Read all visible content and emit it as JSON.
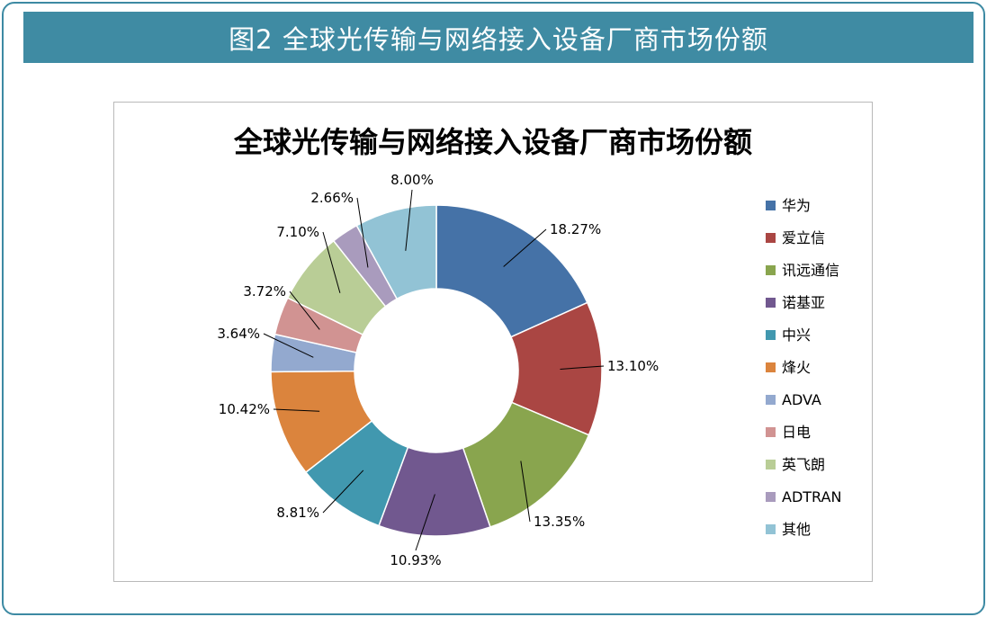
{
  "header": {
    "title": "图2  全球光传输与网络接入设备厂商市场份额"
  },
  "chart_data": {
    "type": "pie",
    "title": "全球光传输与网络接入设备厂商市场份额",
    "legend_position": "right",
    "series": [
      {
        "name": "华为",
        "value": 18.27,
        "label": "18.27%",
        "color": "#4572a7"
      },
      {
        "name": "爱立信",
        "value": 13.1,
        "label": "13.10%",
        "color": "#aa4643"
      },
      {
        "name": "讯远通信",
        "value": 13.35,
        "label": "13.35%",
        "color": "#89a54e"
      },
      {
        "name": "诺基亚",
        "value": 10.93,
        "label": "10.93%",
        "color": "#71588f"
      },
      {
        "name": "中兴",
        "value": 8.81,
        "label": "8.81%",
        "color": "#4198af"
      },
      {
        "name": "烽火",
        "value": 10.42,
        "label": "10.42%",
        "color": "#db843d"
      },
      {
        "name": "ADVA",
        "value": 3.64,
        "label": "3.64%",
        "color": "#93a9cf"
      },
      {
        "name": "日电",
        "value": 3.72,
        "label": "3.72%",
        "color": "#d19392"
      },
      {
        "name": "英飞朗",
        "value": 7.1,
        "label": "7.10%",
        "color": "#b9cd96"
      },
      {
        "name": "ADTRAN",
        "value": 2.66,
        "label": "2.66%",
        "color": "#a99bbd"
      },
      {
        "name": "其他",
        "value": 8.0,
        "label": "8.00%",
        "color": "#92c3d5"
      }
    ]
  }
}
